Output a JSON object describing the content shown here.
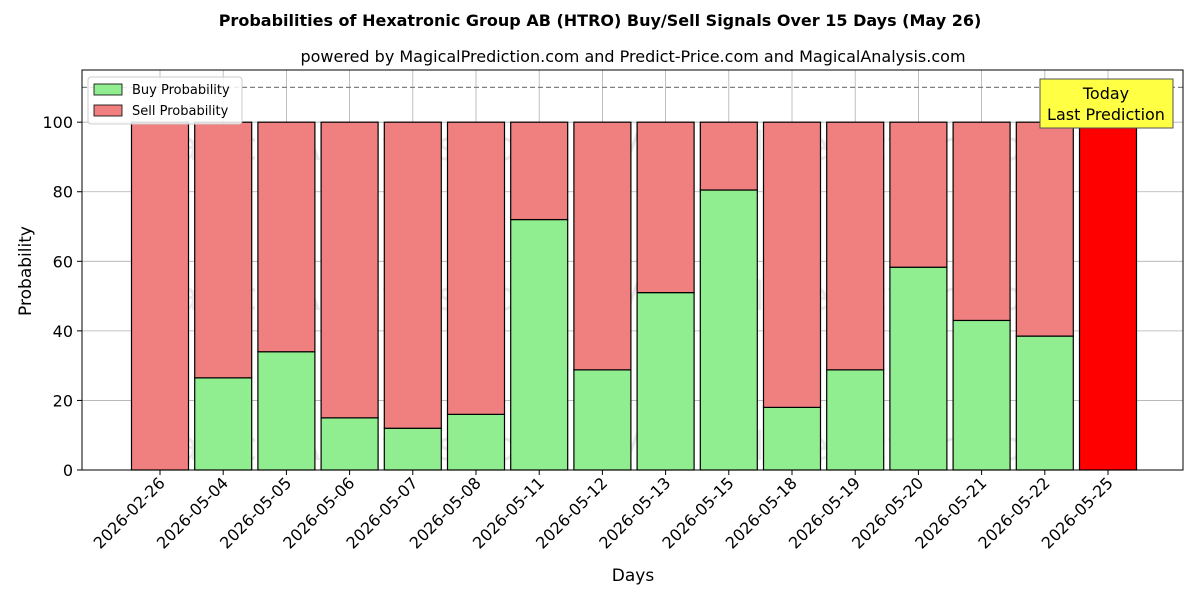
{
  "chart_data": {
    "type": "bar",
    "stacked": true,
    "title": "Probabilities of Hexatronic Group AB (HTRO) Buy/Sell Signals Over 15 Days (May 26)",
    "subtitle": "powered by MagicalPrediction.com and Predict-Price.com and MagicalAnalysis.com",
    "xlabel": "Days",
    "ylabel": "Probability",
    "ylim": [
      0,
      115
    ],
    "yticks": [
      0,
      20,
      40,
      60,
      80,
      100
    ],
    "grid": true,
    "legend_position": "top-left",
    "reference_line": 110,
    "categories": [
      "2026-02-26",
      "2026-05-04",
      "2026-05-05",
      "2026-05-06",
      "2026-05-07",
      "2026-05-08",
      "2026-05-11",
      "2026-05-12",
      "2026-05-13",
      "2026-05-15",
      "2026-05-18",
      "2026-05-19",
      "2026-05-20",
      "2026-05-21",
      "2026-05-22",
      "2026-05-25"
    ],
    "series": [
      {
        "name": "Buy Probability",
        "color": "#90ee90",
        "values": [
          0,
          26.5,
          34,
          15,
          12,
          16,
          72,
          28.8,
          51,
          80.5,
          18,
          28.8,
          58.3,
          43,
          38.5,
          0
        ]
      },
      {
        "name": "Sell Probability",
        "color": "#f08080",
        "values": [
          100,
          73.5,
          66,
          85,
          88,
          84,
          28,
          71.2,
          49,
          19.5,
          82,
          71.2,
          41.7,
          57,
          61.5,
          100
        ]
      }
    ],
    "highlight": {
      "category": "2026-05-25",
      "color": "#ff0000"
    },
    "annotation": {
      "lines": [
        "Today",
        "Last Prediction"
      ],
      "background": "#ffff44"
    },
    "watermarks": [
      "MagicalAnalysis.com",
      "MagicalPrediction.com"
    ]
  }
}
